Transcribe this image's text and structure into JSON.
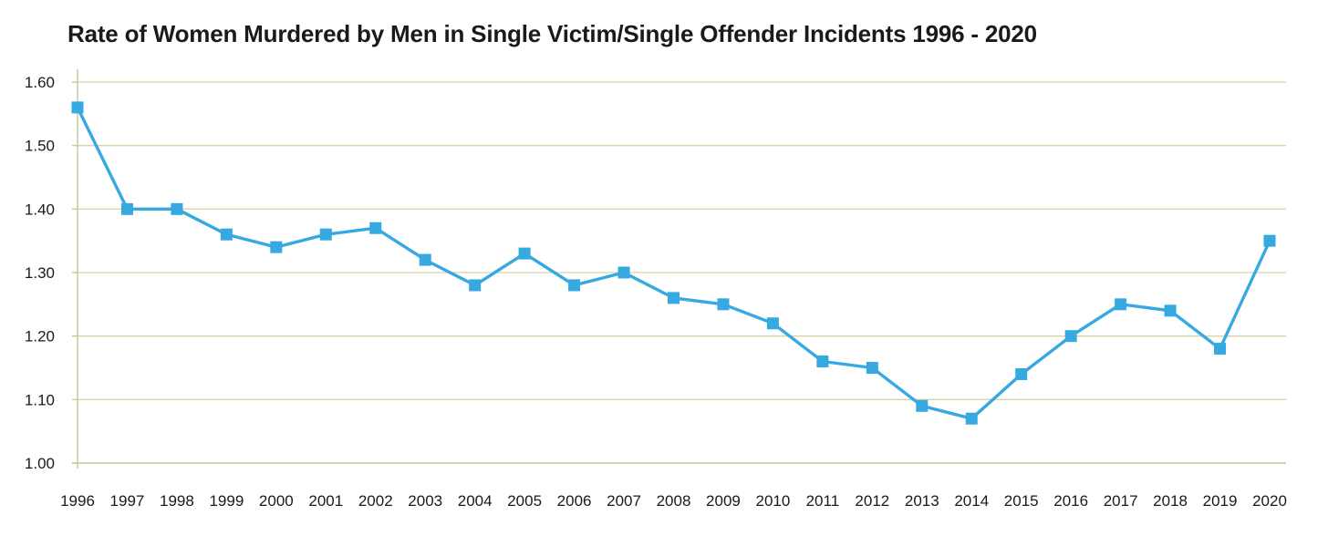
{
  "chart_data": {
    "type": "line",
    "title": "Rate of Women Murdered by Men in Single Victim/Single Offender Incidents 1996 - 2020",
    "xlabel": "",
    "ylabel": "",
    "x": [
      "1996",
      "1997",
      "1998",
      "1999",
      "2000",
      "2001",
      "2002",
      "2003",
      "2004",
      "2005",
      "2006",
      "2007",
      "2008",
      "2009",
      "2010",
      "2011",
      "2012",
      "2013",
      "2014",
      "2015",
      "2016",
      "2017",
      "2018",
      "2019",
      "2020"
    ],
    "yticks": [
      "1.00",
      "1.10",
      "1.20",
      "1.30",
      "1.40",
      "1.50",
      "1.60"
    ],
    "ylim": [
      1.0,
      1.6
    ],
    "grid": "horizontal",
    "legend": "none",
    "series": [
      {
        "values": [
          1.56,
          1.4,
          1.4,
          1.36,
          1.34,
          1.36,
          1.37,
          1.32,
          1.28,
          1.33,
          1.28,
          1.3,
          1.26,
          1.25,
          1.22,
          1.16,
          1.15,
          1.09,
          1.07,
          1.14,
          1.2,
          1.25,
          1.24,
          1.18,
          1.35
        ],
        "color": "#36a9e1",
        "marker": "square"
      }
    ]
  }
}
